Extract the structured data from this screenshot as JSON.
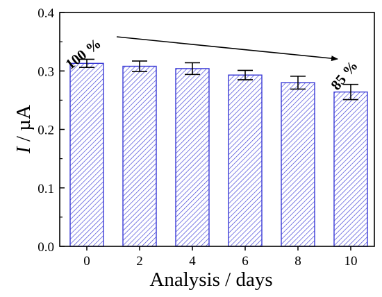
{
  "chart_data": {
    "type": "bar",
    "categories": [
      "0",
      "2",
      "4",
      "6",
      "8",
      "10"
    ],
    "values": [
      0.313,
      0.308,
      0.304,
      0.293,
      0.28,
      0.264
    ],
    "errors": [
      0.007,
      0.009,
      0.01,
      0.008,
      0.011,
      0.013
    ],
    "title": "",
    "xlabel": "Analysis / days",
    "ylabel_italic": "I",
    "ylabel_rest": " / µA",
    "ylim": [
      0,
      0.4
    ],
    "yticks": [
      "0.0",
      "0.1",
      "0.2",
      "0.3",
      "0.4"
    ],
    "ytick_values": [
      0.0,
      0.1,
      0.2,
      0.3,
      0.4
    ],
    "grid": false,
    "bar_color": "#3a3ad6",
    "annotations": [
      {
        "text": "100 %",
        "category": "0"
      },
      {
        "text": "85 %",
        "category": "10"
      }
    ]
  }
}
